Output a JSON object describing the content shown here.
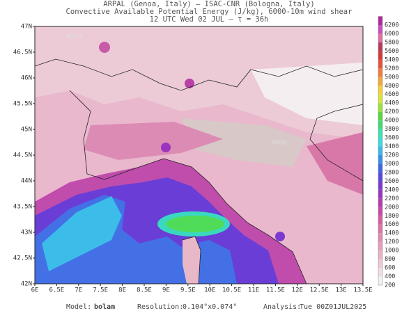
{
  "header": {
    "lines": [
      "ARPAL (Genoa, Italy)  –  ISAC-CNR (Bologna, Italy)",
      "Convective Available Potential Energy (J/kg), 6000-10m wind shear",
      "12 UTC Wed 02 JUL  –  τ = 36h"
    ]
  },
  "map": {
    "x_labels": [
      "6E",
      "6.5E",
      "7E",
      "7.5E",
      "8E",
      "8.5E",
      "9E",
      "9.5E",
      "10E",
      "10.5E",
      "11E",
      "11.5E",
      "12E",
      "12.5E",
      "13E",
      "13.5E"
    ],
    "y_labels": [
      "47N",
      "46.5N",
      "46N",
      "45.5N",
      "45N",
      "44.5N",
      "44N",
      "43.5N",
      "43N",
      "42.5N",
      "42N"
    ],
    "watermark": "ARPAL"
  },
  "colorbar": {
    "levels": [
      200,
      400,
      600,
      800,
      1000,
      1200,
      1400,
      1600,
      1800,
      2000,
      2200,
      2400,
      2600,
      2800,
      3000,
      3200,
      3400,
      3600,
      3800,
      4000,
      4200,
      4400,
      4600,
      4800,
      5000,
      5200,
      5400,
      5600,
      5800,
      6000,
      6200
    ],
    "colors": [
      "#f4f0f0",
      "#f2dde4",
      "#eec8d6",
      "#e9b3c8",
      "#e59fbb",
      "#e18bb0",
      "#dc74a6",
      "#d35ea2",
      "#c849a6",
      "#b43cae",
      "#9b35c0",
      "#7b39d2",
      "#5a48e0",
      "#3f66e8",
      "#3a8fe8",
      "#3cb8ea",
      "#40d8e0",
      "#3ee0b0",
      "#40dc70",
      "#5ad840",
      "#9ce03c",
      "#d8e43c",
      "#f4d03c",
      "#f4a83c",
      "#f07c3c",
      "#e8503c",
      "#d43838",
      "#b83a5a",
      "#e070a0",
      "#c850c0",
      "#b02898"
    ]
  },
  "footer": [
    {
      "label": "Model:",
      "value": "bolam"
    },
    {
      "label": "Resolution:",
      "value": "0.104°x0.074°"
    },
    {
      "label": "Analysis:",
      "value": "Tue 00Z01JUL2025"
    }
  ]
}
